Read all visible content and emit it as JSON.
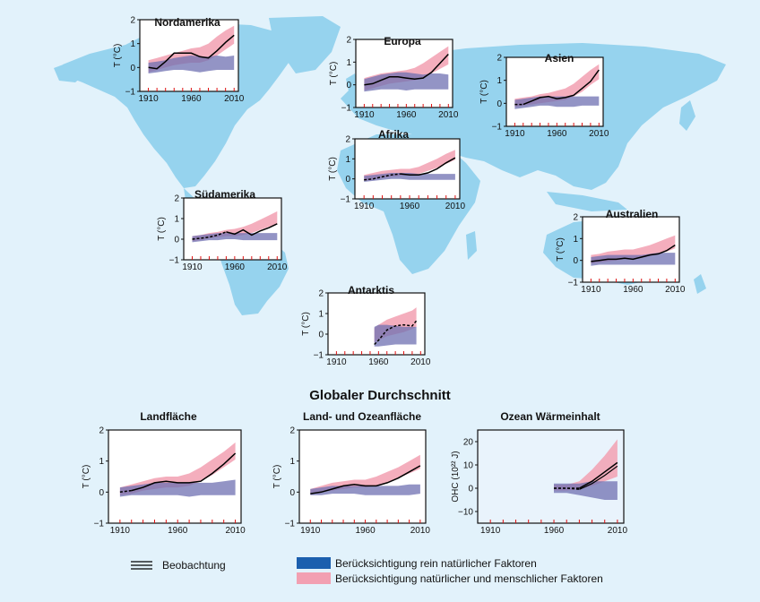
{
  "colors": {
    "background": "#e2f2fb",
    "land": "#96d3ee",
    "natural_band": "#6f70b2",
    "combined_band": "#f2a0b2",
    "observation": "#000000",
    "ocean_title": "#2b2f8f",
    "land_ocean_panel_bg": "#e8eac5",
    "ocean_panel_bg": "#e9f3fc"
  },
  "global_title": "Globaler Durchschnitt",
  "legend": {
    "observation": "Beobachtung",
    "natural": "Berücksichtigung rein natürlicher Faktoren",
    "combined": "Berücksichtigung natürlicher und menschlicher Faktoren"
  },
  "chart_data": [
    {
      "id": "nordamerika",
      "type": "line",
      "title": "Nordamerika",
      "ylabel": "T (°C)",
      "xlim": [
        1900,
        2015
      ],
      "ylim": [
        -1,
        2
      ],
      "xticks": [
        "1910",
        "1960",
        "2010"
      ],
      "yticks": [
        "−1",
        "0",
        "1",
        "2"
      ],
      "x": [
        1910,
        1920,
        1930,
        1940,
        1950,
        1960,
        1970,
        1980,
        1990,
        2000,
        2010
      ],
      "observation": {
        "values": [
          0.0,
          -0.05,
          0.25,
          0.6,
          0.6,
          0.6,
          0.45,
          0.4,
          0.7,
          1.05,
          1.35
        ],
        "dashed_until": 1910
      },
      "natural_band": {
        "lower": [
          -0.25,
          -0.2,
          -0.15,
          -0.1,
          -0.1,
          -0.15,
          -0.2,
          -0.15,
          -0.1,
          -0.1,
          -0.1
        ],
        "upper": [
          0.2,
          0.25,
          0.3,
          0.4,
          0.45,
          0.5,
          0.45,
          0.45,
          0.5,
          0.45,
          0.5
        ]
      },
      "combined_band": {
        "lower": [
          -0.2,
          -0.1,
          0.0,
          0.1,
          0.15,
          0.2,
          0.2,
          0.3,
          0.5,
          0.75,
          1.0
        ],
        "upper": [
          0.3,
          0.4,
          0.5,
          0.6,
          0.7,
          0.8,
          0.85,
          1.0,
          1.3,
          1.55,
          1.75
        ]
      }
    },
    {
      "id": "europa",
      "type": "line",
      "title": "Europa",
      "ylabel": "T (°C)",
      "xlim": [
        1900,
        2015
      ],
      "ylim": [
        -1,
        2
      ],
      "xticks": [
        "1910",
        "1960",
        "2010"
      ],
      "yticks": [
        "−1",
        "0",
        "1",
        "2"
      ],
      "x": [
        1910,
        1920,
        1930,
        1940,
        1950,
        1960,
        1970,
        1980,
        1990,
        2000,
        2010
      ],
      "observation": {
        "values": [
          0.0,
          0.05,
          0.2,
          0.35,
          0.35,
          0.3,
          0.25,
          0.3,
          0.55,
          0.95,
          1.35
        ],
        "dashed_until": 1910
      },
      "natural_band": {
        "lower": [
          -0.3,
          -0.25,
          -0.2,
          -0.2,
          -0.2,
          -0.25,
          -0.2,
          -0.2,
          -0.2,
          -0.2,
          -0.2
        ],
        "upper": [
          0.25,
          0.35,
          0.45,
          0.5,
          0.55,
          0.55,
          0.5,
          0.45,
          0.5,
          0.5,
          0.45
        ]
      },
      "combined_band": {
        "lower": [
          -0.25,
          -0.15,
          -0.05,
          0.05,
          0.1,
          0.15,
          0.2,
          0.3,
          0.5,
          0.7,
          0.9
        ],
        "upper": [
          0.3,
          0.4,
          0.5,
          0.55,
          0.6,
          0.65,
          0.75,
          0.95,
          1.2,
          1.45,
          1.7
        ]
      }
    },
    {
      "id": "asien",
      "type": "line",
      "title": "Asien",
      "ylabel": "T (°C)",
      "xlim": [
        1900,
        2015
      ],
      "ylim": [
        -1,
        2
      ],
      "xticks": [
        "1910",
        "1960",
        "2010"
      ],
      "yticks": [
        "−1",
        "0",
        "1",
        "2"
      ],
      "x": [
        1910,
        1920,
        1930,
        1940,
        1950,
        1960,
        1970,
        1980,
        1990,
        2000,
        2010
      ],
      "observation": {
        "values": [
          -0.05,
          -0.05,
          0.1,
          0.25,
          0.3,
          0.2,
          0.25,
          0.35,
          0.65,
          0.95,
          1.45
        ],
        "dashed_until": 1920
      },
      "natural_band": {
        "lower": [
          -0.25,
          -0.2,
          -0.15,
          -0.1,
          -0.1,
          -0.15,
          -0.15,
          -0.15,
          -0.1,
          -0.1,
          -0.1
        ],
        "upper": [
          0.15,
          0.2,
          0.25,
          0.3,
          0.3,
          0.3,
          0.3,
          0.3,
          0.3,
          0.3,
          0.3
        ]
      },
      "combined_band": {
        "lower": [
          -0.15,
          -0.1,
          -0.05,
          0.0,
          0.05,
          0.1,
          0.15,
          0.3,
          0.5,
          0.8,
          1.05
        ],
        "upper": [
          0.2,
          0.25,
          0.3,
          0.4,
          0.45,
          0.55,
          0.65,
          0.85,
          1.15,
          1.45,
          1.7
        ]
      }
    },
    {
      "id": "afrika",
      "type": "line",
      "title": "Afrika",
      "ylabel": "T (°C)",
      "xlim": [
        1900,
        2015
      ],
      "ylim": [
        -1,
        2
      ],
      "xticks": [
        "1910",
        "1960",
        "2010"
      ],
      "yticks": [
        "−1",
        "0",
        "1",
        "2"
      ],
      "x": [
        1910,
        1920,
        1930,
        1940,
        1950,
        1960,
        1970,
        1980,
        1990,
        2000,
        2010
      ],
      "observation": {
        "values": [
          -0.05,
          0.0,
          0.1,
          0.2,
          0.25,
          0.2,
          0.2,
          0.3,
          0.5,
          0.8,
          1.05
        ],
        "dashed_until": 1950
      },
      "natural_band": {
        "lower": [
          -0.15,
          -0.1,
          -0.05,
          0.0,
          0.0,
          -0.05,
          -0.05,
          -0.05,
          -0.05,
          -0.05,
          -0.05
        ],
        "upper": [
          0.15,
          0.2,
          0.25,
          0.3,
          0.3,
          0.3,
          0.25,
          0.25,
          0.25,
          0.25,
          0.25
        ]
      },
      "combined_band": {
        "lower": [
          -0.1,
          -0.05,
          0.05,
          0.1,
          0.15,
          0.2,
          0.25,
          0.4,
          0.55,
          0.75,
          0.95
        ],
        "upper": [
          0.2,
          0.3,
          0.4,
          0.45,
          0.5,
          0.5,
          0.6,
          0.8,
          1.0,
          1.25,
          1.45
        ]
      }
    },
    {
      "id": "suedamerika",
      "type": "line",
      "title": "Südamerika",
      "ylabel": "T (°C)",
      "xlim": [
        1900,
        2015
      ],
      "ylim": [
        -1,
        2
      ],
      "xticks": [
        "1910",
        "1960",
        "2010"
      ],
      "yticks": [
        "−1",
        "0",
        "1",
        "2"
      ],
      "x": [
        1910,
        1920,
        1930,
        1940,
        1950,
        1960,
        1970,
        1980,
        1990,
        2000,
        2010
      ],
      "observation": {
        "values": [
          0.0,
          0.05,
          0.1,
          0.2,
          0.35,
          0.25,
          0.45,
          0.2,
          0.4,
          0.55,
          0.75
        ],
        "dashed_until": 1950
      },
      "natural_band": {
        "lower": [
          -0.15,
          -0.1,
          -0.05,
          -0.05,
          0.0,
          0.0,
          -0.05,
          -0.05,
          -0.05,
          -0.05,
          -0.05
        ],
        "upper": [
          0.15,
          0.2,
          0.25,
          0.3,
          0.3,
          0.3,
          0.3,
          0.3,
          0.3,
          0.3,
          0.3
        ]
      },
      "combined_band": {
        "lower": [
          -0.1,
          -0.05,
          0.05,
          0.1,
          0.15,
          0.15,
          0.2,
          0.3,
          0.45,
          0.6,
          0.75
        ],
        "upper": [
          0.15,
          0.2,
          0.3,
          0.35,
          0.45,
          0.5,
          0.6,
          0.75,
          0.95,
          1.15,
          1.35
        ]
      }
    },
    {
      "id": "australien",
      "type": "line",
      "title": "Australien",
      "ylabel": "T (°C)",
      "xlim": [
        1900,
        2015
      ],
      "ylim": [
        -1,
        2
      ],
      "xticks": [
        "1910",
        "1960",
        "2010"
      ],
      "yticks": [
        "−1",
        "0",
        "1",
        "2"
      ],
      "x": [
        1910,
        1920,
        1930,
        1940,
        1950,
        1960,
        1970,
        1980,
        1990,
        2000,
        2010
      ],
      "observation": {
        "values": [
          -0.05,
          0.0,
          0.05,
          0.05,
          0.1,
          0.05,
          0.15,
          0.25,
          0.3,
          0.45,
          0.7
        ],
        "dashed_until": 1910
      },
      "natural_band": {
        "lower": [
          -0.25,
          -0.2,
          -0.2,
          -0.2,
          -0.2,
          -0.2,
          -0.2,
          -0.2,
          -0.2,
          -0.2,
          -0.2
        ],
        "upper": [
          0.15,
          0.2,
          0.25,
          0.25,
          0.25,
          0.25,
          0.25,
          0.3,
          0.35,
          0.35,
          0.35
        ]
      },
      "combined_band": {
        "lower": [
          -0.15,
          -0.1,
          -0.05,
          0.0,
          0.05,
          0.05,
          0.1,
          0.2,
          0.3,
          0.4,
          0.55
        ],
        "upper": [
          0.25,
          0.3,
          0.4,
          0.45,
          0.5,
          0.5,
          0.6,
          0.7,
          0.85,
          1.0,
          1.15
        ]
      }
    },
    {
      "id": "antarktis",
      "type": "line",
      "title": "Antarktis",
      "ylabel": "T (°C)",
      "xlim": [
        1900,
        2015
      ],
      "ylim": [
        -1,
        2
      ],
      "xticks": [
        "1910",
        "1960",
        "2010"
      ],
      "yticks": [
        "−1",
        "0",
        "1",
        "2"
      ],
      "x": [
        1955,
        1960,
        1970,
        1980,
        1990,
        2000,
        2005
      ],
      "observation": {
        "values": [
          -0.5,
          -0.3,
          0.2,
          0.4,
          0.45,
          0.4,
          0.65
        ],
        "dashed_until": 2005
      },
      "natural_band": {
        "lower": [
          -0.6,
          -0.6,
          -0.55,
          -0.5,
          -0.5,
          -0.5,
          -0.5
        ],
        "upper": [
          0.35,
          0.45,
          0.45,
          0.4,
          0.35,
          0.35,
          0.35
        ]
      },
      "combined_band": {
        "lower": [
          -0.4,
          -0.3,
          -0.1,
          0.0,
          0.1,
          0.25,
          0.35
        ],
        "upper": [
          0.3,
          0.45,
          0.7,
          0.85,
          1.0,
          1.15,
          1.3
        ]
      }
    },
    {
      "id": "landflaeche",
      "type": "line",
      "title": "Landfläche",
      "ylabel": "T (°C)",
      "xlim": [
        1900,
        2015
      ],
      "ylim": [
        -1,
        2
      ],
      "xticks": [
        "1910",
        "1960",
        "2010"
      ],
      "yticks": [
        "−1",
        "0",
        "1",
        "2"
      ],
      "x": [
        1910,
        1920,
        1930,
        1940,
        1950,
        1960,
        1970,
        1980,
        1990,
        2000,
        2010
      ],
      "observation": {
        "values": [
          0.0,
          0.05,
          0.15,
          0.3,
          0.35,
          0.3,
          0.3,
          0.35,
          0.6,
          0.9,
          1.25
        ],
        "dashed_until": 1920
      },
      "natural_band": {
        "lower": [
          -0.15,
          -0.1,
          -0.1,
          -0.1,
          -0.1,
          -0.1,
          -0.15,
          -0.1,
          -0.1,
          -0.1,
          -0.1
        ],
        "upper": [
          0.15,
          0.2,
          0.25,
          0.3,
          0.3,
          0.3,
          0.3,
          0.3,
          0.3,
          0.35,
          0.4
        ]
      },
      "combined_band": {
        "lower": [
          -0.1,
          -0.05,
          0.05,
          0.1,
          0.15,
          0.15,
          0.2,
          0.35,
          0.55,
          0.8,
          1.05
        ],
        "upper": [
          0.15,
          0.25,
          0.35,
          0.45,
          0.5,
          0.5,
          0.6,
          0.8,
          1.05,
          1.3,
          1.6
        ]
      }
    },
    {
      "id": "land_ozean",
      "type": "line",
      "title": "Land- und Ozeanfläche",
      "ylabel": "T (°C)",
      "xlim": [
        1900,
        2015
      ],
      "ylim": [
        -1,
        2
      ],
      "xticks": [
        "1910",
        "1960",
        "2010"
      ],
      "yticks": [
        "−1",
        "0",
        "1",
        "2"
      ],
      "x": [
        1910,
        1920,
        1930,
        1940,
        1950,
        1960,
        1970,
        1980,
        1990,
        2000,
        2010
      ],
      "observation": {
        "values": [
          -0.05,
          0.0,
          0.1,
          0.2,
          0.25,
          0.2,
          0.2,
          0.3,
          0.45,
          0.65,
          0.85
        ],
        "dashed_until": 1910
      },
      "natural_band": {
        "lower": [
          -0.1,
          -0.1,
          -0.05,
          -0.05,
          -0.05,
          -0.1,
          -0.1,
          -0.1,
          -0.1,
          -0.1,
          -0.05
        ],
        "upper": [
          0.1,
          0.15,
          0.2,
          0.2,
          0.2,
          0.2,
          0.2,
          0.2,
          0.2,
          0.25,
          0.25
        ]
      },
      "combined_band": {
        "lower": [
          -0.05,
          0.0,
          0.05,
          0.1,
          0.15,
          0.15,
          0.2,
          0.3,
          0.45,
          0.6,
          0.75
        ],
        "upper": [
          0.1,
          0.2,
          0.3,
          0.35,
          0.4,
          0.4,
          0.5,
          0.65,
          0.8,
          1.0,
          1.2
        ]
      }
    },
    {
      "id": "ozean",
      "type": "line",
      "title": "Ozean Wärmeinhalt",
      "ylabel": "OHC (10²² J)",
      "xlim": [
        1900,
        2015
      ],
      "ylim": [
        -15,
        25
      ],
      "xticks": [
        "1910",
        "1960",
        "2010"
      ],
      "yticks": [
        "−10",
        "0",
        "10",
        "20"
      ],
      "x": [
        1960,
        1970,
        1980,
        1990,
        2000,
        2010
      ],
      "observation": {
        "values": [
          0,
          0,
          0,
          3,
          7,
          11
        ],
        "dashed_until": 1980,
        "second_values": [
          0,
          0,
          -0.5,
          2,
          5.5,
          9.5
        ]
      },
      "natural_band": {
        "lower": [
          -2,
          -2,
          -3,
          -4,
          -5,
          -5
        ],
        "upper": [
          2,
          2,
          2,
          3,
          3,
          3
        ]
      },
      "combined_band": {
        "lower": [
          -1,
          -1,
          -0.5,
          1,
          3,
          5
        ],
        "upper": [
          1.5,
          1.5,
          3,
          8,
          14,
          21
        ]
      }
    }
  ]
}
